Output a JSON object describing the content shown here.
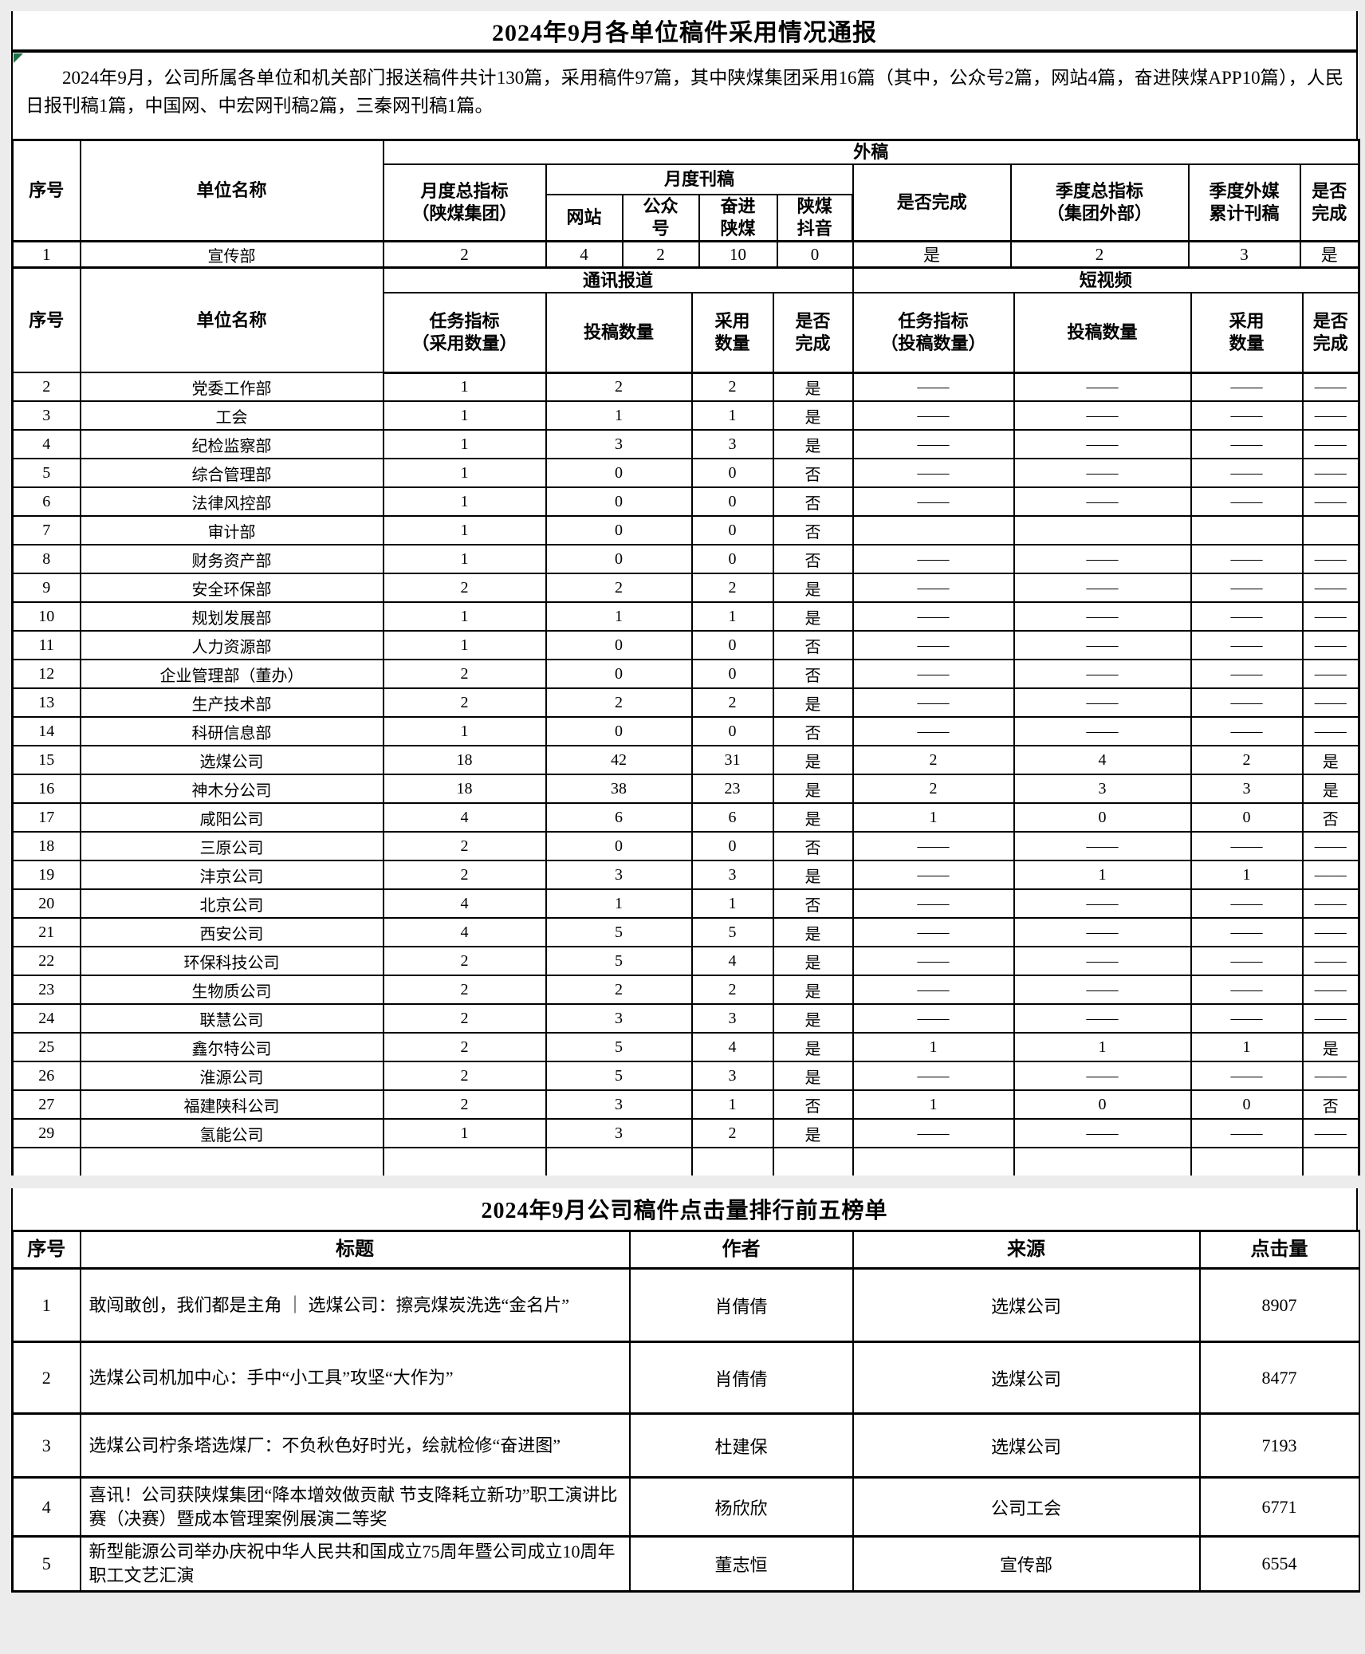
{
  "page": {
    "title": "2024年9月各单位稿件采用情况通报",
    "intro": "2024年9月，公司所属各单位和机关部门报送稿件共计130篇，采用稿件97篇，其中陕煤集团采用16篇（其中，公众号2篇，网站4篇，奋进陕煤APP10篇），人民日报刊稿1篇，中国网、中宏网刊稿2篇，三秦网刊稿1篇。"
  },
  "colors": {
    "page_background": "#ececec",
    "cell_background": "#ffffff",
    "border": "#000000",
    "error_indicator_green": "#1e7145"
  },
  "table1": {
    "headers": {
      "xh": "序号",
      "dwmc": "单位名称",
      "waigao": "外稿",
      "ydzzb": "月度总指标\n（陕煤集团）",
      "ydkg": "月度刊稿",
      "wz": "网站",
      "gzh": "公众\n号",
      "fjsm": "奋进\n陕煤",
      "smdy": "陕煤\n抖音",
      "sfwc": "是否完成",
      "jdzzb": "季度总指标\n（集团外部）",
      "jdwmkg": "季度外媒\n累计刊稿",
      "sfwc2": "是否\n完成"
    },
    "row1": [
      "1",
      "宣传部",
      "2",
      "4",
      "2",
      "10",
      "0",
      "是",
      "2",
      "3",
      "是"
    ],
    "section2": {
      "xh": "序号",
      "dwmc": "单位名称",
      "txbd": "通讯报道",
      "dsp": "短视频",
      "rwzb_cy": "任务指标\n（采用数量）",
      "tgsl": "投稿数量",
      "cysl": "采用\n数量",
      "sfwc": "是否\n完成",
      "rwzb_tg": "任务指标\n（投稿数量）",
      "tgsl2": "投稿数量",
      "cysl2": "采用\n数量",
      "sfwc3": "是否\n完成"
    },
    "rows": [
      [
        "2",
        "党委工作部",
        "1",
        "2",
        "2",
        "是",
        "——",
        "——",
        "——",
        "——"
      ],
      [
        "3",
        "工会",
        "1",
        "1",
        "1",
        "是",
        "——",
        "——",
        "——",
        "——"
      ],
      [
        "4",
        "纪检监察部",
        "1",
        "3",
        "3",
        "是",
        "——",
        "——",
        "——",
        "——"
      ],
      [
        "5",
        "综合管理部",
        "1",
        "0",
        "0",
        "否",
        "——",
        "——",
        "——",
        "——"
      ],
      [
        "6",
        "法律风控部",
        "1",
        "0",
        "0",
        "否",
        "——",
        "——",
        "——",
        "——"
      ],
      [
        "7",
        "审计部",
        "1",
        "0",
        "0",
        "否",
        "",
        "",
        "",
        ""
      ],
      [
        "8",
        "财务资产部",
        "1",
        "0",
        "0",
        "否",
        "——",
        "——",
        "——",
        "——"
      ],
      [
        "9",
        "安全环保部",
        "2",
        "2",
        "2",
        "是",
        "——",
        "——",
        "——",
        "——"
      ],
      [
        "10",
        "规划发展部",
        "1",
        "1",
        "1",
        "是",
        "——",
        "——",
        "——",
        "——"
      ],
      [
        "11",
        "人力资源部",
        "1",
        "0",
        "0",
        "否",
        "——",
        "——",
        "——",
        "——"
      ],
      [
        "12",
        "企业管理部（董办）",
        "2",
        "0",
        "0",
        "否",
        "——",
        "——",
        "——",
        "——"
      ],
      [
        "13",
        "生产技术部",
        "2",
        "2",
        "2",
        "是",
        "——",
        "——",
        "——",
        "——"
      ],
      [
        "14",
        "科研信息部",
        "1",
        "0",
        "0",
        "否",
        "——",
        "——",
        "——",
        "——"
      ],
      [
        "15",
        "选煤公司",
        "18",
        "42",
        "31",
        "是",
        "2",
        "4",
        "2",
        "是"
      ],
      [
        "16",
        "神木分公司",
        "18",
        "38",
        "23",
        "是",
        "2",
        "3",
        "3",
        "是"
      ],
      [
        "17",
        "咸阳公司",
        "4",
        "6",
        "6",
        "是",
        "1",
        "0",
        "0",
        "否"
      ],
      [
        "18",
        "三原公司",
        "2",
        "0",
        "0",
        "否",
        "——",
        "——",
        "——",
        "——"
      ],
      [
        "19",
        "沣京公司",
        "2",
        "3",
        "3",
        "是",
        "——",
        "1",
        "1",
        "——"
      ],
      [
        "20",
        "北京公司",
        "4",
        "1",
        "1",
        "否",
        "——",
        "——",
        "——",
        "——"
      ],
      [
        "21",
        "西安公司",
        "4",
        "5",
        "5",
        "是",
        "——",
        "——",
        "——",
        "——"
      ],
      [
        "22",
        "环保科技公司",
        "2",
        "5",
        "4",
        "是",
        "——",
        "——",
        "——",
        "——"
      ],
      [
        "23",
        "生物质公司",
        "2",
        "2",
        "2",
        "是",
        "——",
        "——",
        "——",
        "——"
      ],
      [
        "24",
        "联慧公司",
        "2",
        "3",
        "3",
        "是",
        "——",
        "——",
        "——",
        "——"
      ],
      [
        "25",
        "鑫尔特公司",
        "2",
        "5",
        "4",
        "是",
        "1",
        "1",
        "1",
        "是"
      ],
      [
        "26",
        "淮源公司",
        "2",
        "5",
        "3",
        "是",
        "——",
        "——",
        "——",
        "——"
      ],
      [
        "27",
        "福建陕科公司",
        "2",
        "3",
        "1",
        "否",
        "1",
        "0",
        "0",
        "否"
      ],
      [
        "29",
        "氢能公司",
        "1",
        "3",
        "2",
        "是",
        "——",
        "——",
        "——",
        "——"
      ]
    ]
  },
  "table2": {
    "title": "2024年9月公司稿件点击量排行前五榜单",
    "headers": [
      "序号",
      "标题",
      "作者",
      "来源",
      "点击量"
    ],
    "rows": [
      [
        "1",
        "敢闯敢创，我们都是主角 ｜ 选煤公司：擦亮煤炭洗选“金名片”",
        "肖倩倩",
        "选煤公司",
        "8907"
      ],
      [
        "2",
        "选煤公司机加中心：手中“小工具”攻坚“大作为”",
        "肖倩倩",
        "选煤公司",
        "8477"
      ],
      [
        "3",
        "选煤公司柠条塔选煤厂：不负秋色好时光，绘就检修“奋进图”",
        "杜建保",
        "选煤公司",
        "7193"
      ],
      [
        "4",
        "喜讯！公司获陕煤集团“降本增效做贡献 节支降耗立新功”职工演讲比赛（决赛）暨成本管理案例展演二等奖",
        "杨欣欣",
        "公司工会",
        "6771"
      ],
      [
        "5",
        "新型能源公司举办庆祝中华人民共和国成立75周年暨公司成立10周年职工文艺汇演",
        "董志恒",
        "宣传部",
        "6554"
      ]
    ]
  }
}
